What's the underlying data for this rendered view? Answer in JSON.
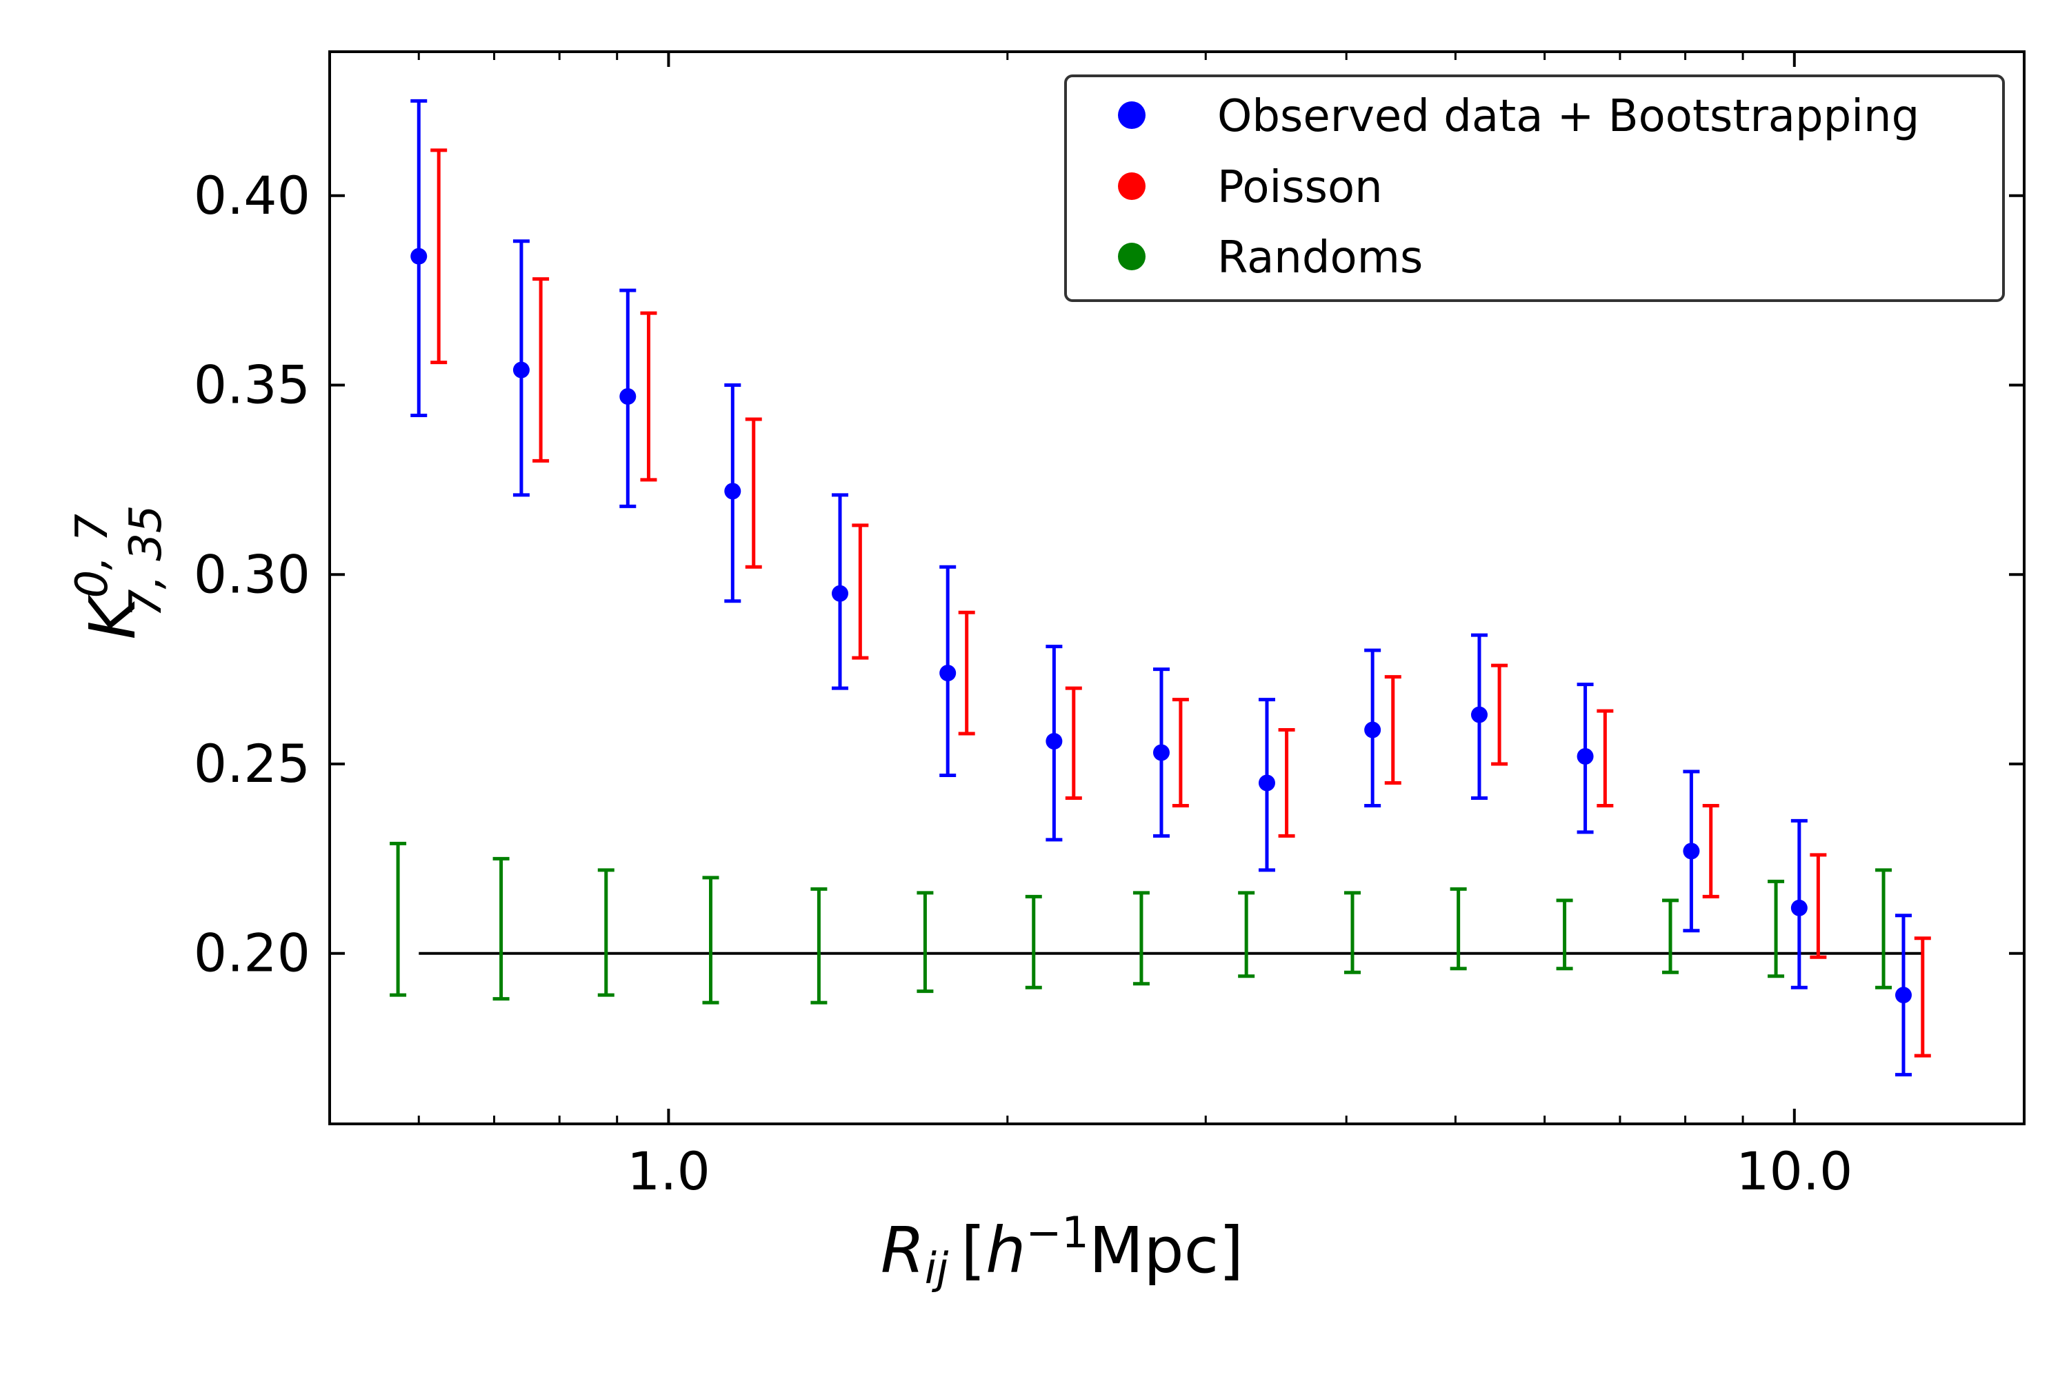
{
  "chart_data": {
    "type": "scatter",
    "x_scale": "log",
    "xlim": [
      0.5,
      16.0
    ],
    "ylim": [
      0.155,
      0.438
    ],
    "xticks": [
      {
        "value": 1.0,
        "label": "1.0"
      },
      {
        "value": 10.0,
        "label": "10.0"
      }
    ],
    "yticks": [
      {
        "value": 0.2,
        "label": "0.20"
      },
      {
        "value": 0.25,
        "label": "0.25"
      },
      {
        "value": 0.3,
        "label": "0.30"
      },
      {
        "value": 0.35,
        "label": "0.35"
      },
      {
        "value": 0.4,
        "label": "0.40"
      }
    ],
    "xlabel": {
      "main": "R",
      "sub": "ij",
      "bracket_open": "[",
      "h": "h",
      "sup": "−1",
      "unit": "Mpc]"
    },
    "ylabel": {
      "main": "K",
      "sup": "0, 7",
      "sub": "7, 35"
    },
    "reference_line": {
      "y": 0.2,
      "x_start": 0.6,
      "x_end": 13.0,
      "color": "#000000"
    },
    "legend": {
      "position": "top-right",
      "entries": [
        {
          "label": "Observed data + Bootstrapping",
          "color": "#0000ff"
        },
        {
          "label": "Poisson",
          "color": "#ff0000"
        },
        {
          "label": "Randoms",
          "color": "#008000"
        }
      ]
    },
    "series": [
      {
        "name": "Observed data + Bootstrapping",
        "color": "#0000ff",
        "marker": true,
        "x": [
          0.6,
          0.74,
          0.92,
          1.14,
          1.42,
          1.77,
          2.2,
          2.74,
          3.4,
          4.22,
          5.25,
          6.52,
          8.1,
          10.1,
          12.5
        ],
        "y": [
          0.384,
          0.354,
          0.347,
          0.322,
          0.295,
          0.274,
          0.256,
          0.253,
          0.245,
          0.259,
          0.263,
          0.252,
          0.227,
          0.212,
          0.189
        ],
        "ylow": [
          0.342,
          0.321,
          0.318,
          0.293,
          0.27,
          0.247,
          0.23,
          0.231,
          0.222,
          0.239,
          0.241,
          0.232,
          0.206,
          0.191,
          0.168
        ],
        "yhigh": [
          0.425,
          0.388,
          0.375,
          0.35,
          0.321,
          0.302,
          0.281,
          0.275,
          0.267,
          0.28,
          0.284,
          0.271,
          0.248,
          0.235,
          0.21
        ]
      },
      {
        "name": "Poisson",
        "color": "#ff0000",
        "marker": false,
        "x": [
          0.625,
          0.77,
          0.96,
          1.19,
          1.48,
          1.84,
          2.29,
          2.85,
          3.54,
          4.4,
          5.47,
          6.79,
          8.43,
          10.5,
          13.0
        ],
        "ylow": [
          0.356,
          0.33,
          0.325,
          0.302,
          0.278,
          0.258,
          0.241,
          0.239,
          0.231,
          0.245,
          0.25,
          0.239,
          0.215,
          0.199,
          0.173
        ],
        "yhigh": [
          0.412,
          0.378,
          0.369,
          0.341,
          0.313,
          0.29,
          0.27,
          0.267,
          0.259,
          0.273,
          0.276,
          0.264,
          0.239,
          0.226,
          0.204
        ]
      },
      {
        "name": "Randoms",
        "color": "#008000",
        "marker": false,
        "x": [
          0.575,
          0.71,
          0.88,
          1.09,
          1.36,
          1.69,
          2.11,
          2.63,
          3.26,
          4.05,
          5.03,
          6.25,
          7.76,
          9.63,
          12.0
        ],
        "ylow": [
          0.189,
          0.188,
          0.189,
          0.187,
          0.187,
          0.19,
          0.191,
          0.192,
          0.194,
          0.195,
          0.196,
          0.196,
          0.195,
          0.194,
          0.191
        ],
        "yhigh": [
          0.229,
          0.225,
          0.222,
          0.22,
          0.217,
          0.216,
          0.215,
          0.216,
          0.216,
          0.216,
          0.217,
          0.214,
          0.214,
          0.219,
          0.222
        ]
      }
    ]
  }
}
